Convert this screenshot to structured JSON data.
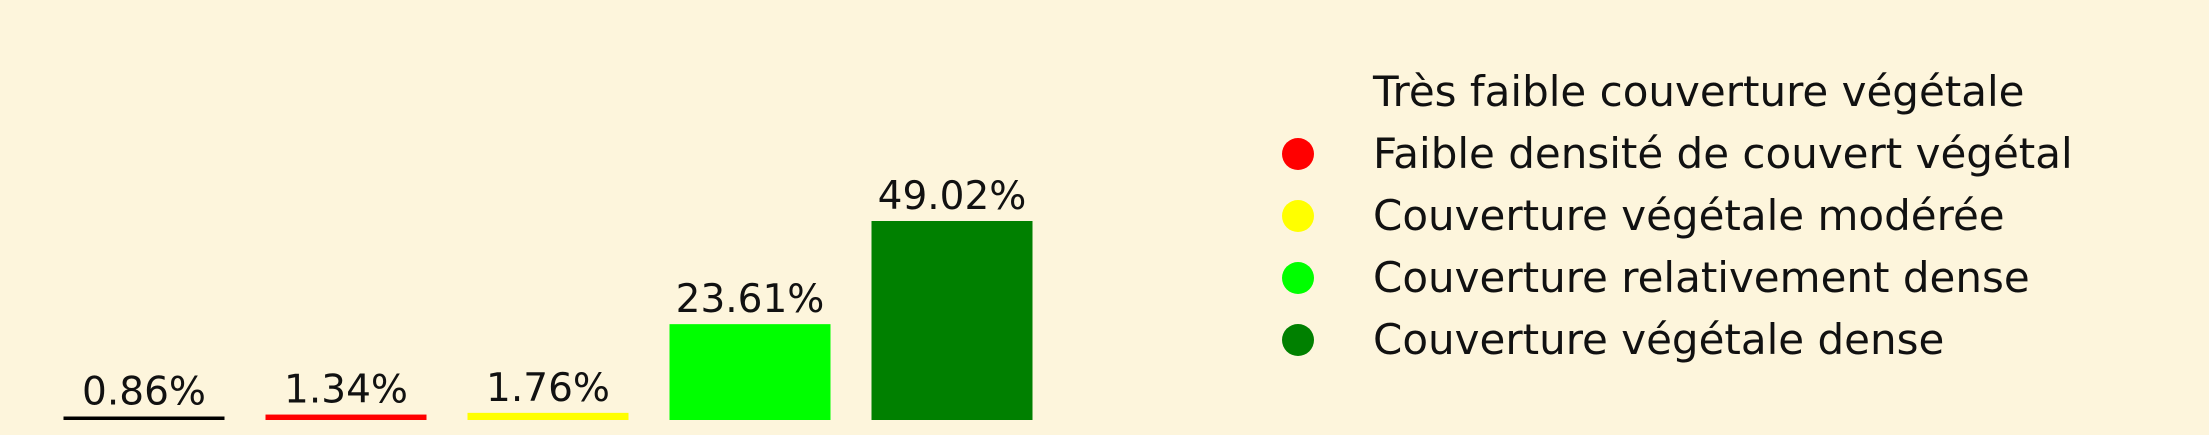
{
  "chart_data": {
    "type": "bar",
    "categories": [
      "Très faible couverture végétale",
      "Faible densité de couvert végétal",
      "Couverture végétale modérée",
      "Couverture relativement dense",
      "Couverture végétale dense"
    ],
    "values": [
      0.86,
      1.34,
      1.76,
      23.61,
      49.02
    ],
    "value_labels": [
      "0.86%",
      "1.34%",
      "1.76%",
      "23.61%",
      "49.02%"
    ],
    "colors": [
      "#000000",
      "#ff0000",
      "#ffff00",
      "#00ff00",
      "#008000"
    ],
    "ylim": [
      0,
      49.02
    ],
    "legend_position": "right",
    "grid": false,
    "title": "",
    "xlabel": "",
    "ylabel": ""
  },
  "theme": {
    "background": "#fdf5dc",
    "legend_marker": "circle"
  }
}
